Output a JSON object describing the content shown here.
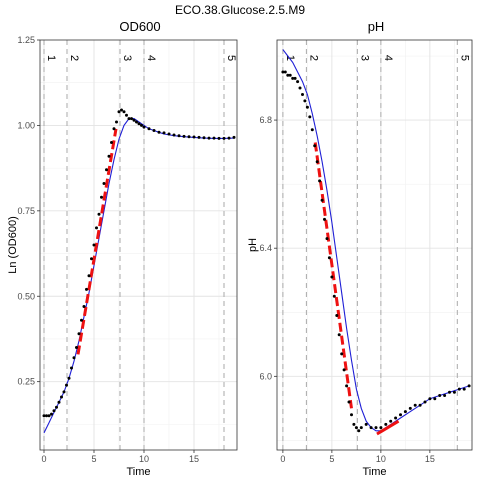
{
  "figure": {
    "title": "ECO.38.Glucose.2.5.M9"
  },
  "colors": {
    "points": "#000000",
    "fit": "#1f1fd6",
    "segment": "#ee1111",
    "phase_lines": "#aaaaaa",
    "grid_major": "#e3e3e3",
    "grid_minor": "#f1f1f1",
    "border": "#333333"
  },
  "chart_data": [
    {
      "type": "scatter",
      "title": "OD600",
      "xlabel": "Time",
      "ylabel": "Ln (OD600)",
      "xlim": [
        -0.4,
        19.3
      ],
      "ylim": [
        0.05,
        1.25
      ],
      "xticks": [
        0,
        5,
        10,
        15
      ],
      "yticks": [
        0.25,
        0.5,
        0.75,
        1.0
      ],
      "ytick_labels": [
        "0.25",
        "0.50",
        "0.75",
        "1.00"
      ],
      "grid": true,
      "phase_lines": [
        {
          "label": "1",
          "x": 0
        },
        {
          "label": "2",
          "x": 2.3
        },
        {
          "label": "3",
          "x": 7.6
        },
        {
          "label": "4",
          "x": 10.0
        },
        {
          "label": "5",
          "x": 18.0
        }
      ],
      "points": {
        "x": [
          0.0,
          0.25,
          0.5,
          0.75,
          1.0,
          1.25,
          1.5,
          1.75,
          2.0,
          2.25,
          2.5,
          2.75,
          3.0,
          3.25,
          3.5,
          3.75,
          4.0,
          4.25,
          4.5,
          4.75,
          5.0,
          5.25,
          5.5,
          5.75,
          6.0,
          6.25,
          6.5,
          6.75,
          7.0,
          7.25,
          7.5,
          7.75,
          8.0,
          8.25,
          8.5,
          8.75,
          9.0,
          9.25,
          9.5,
          9.75,
          10.0,
          10.5,
          11.0,
          11.5,
          12.0,
          12.5,
          13.0,
          13.5,
          14.0,
          14.5,
          15.0,
          15.5,
          16.0,
          16.5,
          17.0,
          17.5,
          18.0,
          18.5,
          19.0
        ],
        "y": [
          0.15,
          0.15,
          0.15,
          0.155,
          0.165,
          0.175,
          0.19,
          0.205,
          0.22,
          0.24,
          0.26,
          0.29,
          0.32,
          0.35,
          0.39,
          0.43,
          0.47,
          0.52,
          0.56,
          0.61,
          0.65,
          0.7,
          0.74,
          0.79,
          0.83,
          0.87,
          0.91,
          0.95,
          0.99,
          1.01,
          1.04,
          1.045,
          1.04,
          1.03,
          1.02,
          1.02,
          1.015,
          1.01,
          1.005,
          1.0,
          0.995,
          0.99,
          0.985,
          0.98,
          0.978,
          0.975,
          0.972,
          0.97,
          0.968,
          0.967,
          0.966,
          0.965,
          0.964,
          0.963,
          0.963,
          0.962,
          0.962,
          0.963,
          0.965
        ]
      },
      "fit": {
        "x": [
          0,
          0.5,
          1,
          1.5,
          2,
          2.5,
          3,
          3.5,
          4,
          4.5,
          5,
          5.5,
          6,
          6.5,
          7,
          7.5,
          8,
          8.5,
          9,
          9.5,
          10,
          10.5,
          11,
          11.5,
          12,
          13,
          14,
          15,
          16,
          17,
          18,
          19
        ],
        "y": [
          0.1,
          0.13,
          0.16,
          0.19,
          0.22,
          0.26,
          0.31,
          0.37,
          0.44,
          0.51,
          0.59,
          0.67,
          0.75,
          0.83,
          0.9,
          0.96,
          1.0,
          1.02,
          1.02,
          1.01,
          1.0,
          0.99,
          0.985,
          0.98,
          0.975,
          0.97,
          0.967,
          0.965,
          0.963,
          0.962,
          0.962,
          0.963
        ]
      },
      "segment": {
        "x": [
          3.4,
          7.2
        ],
        "y": [
          0.33,
          0.99
        ]
      }
    },
    {
      "type": "scatter",
      "title": "pH",
      "xlabel": "Time",
      "ylabel": "pH",
      "xlim": [
        -0.6,
        19.3
      ],
      "ylim": [
        5.77,
        7.05
      ],
      "xticks": [
        0,
        5,
        10,
        15
      ],
      "yticks": [
        6.0,
        6.4,
        6.8
      ],
      "ytick_labels": [
        "6.0",
        "6.4",
        "6.8"
      ],
      "grid": true,
      "phase_lines": [
        {
          "label": "1",
          "x": 0
        },
        {
          "label": "2",
          "x": 2.4
        },
        {
          "label": "3",
          "x": 7.6
        },
        {
          "label": "4",
          "x": 10.0
        },
        {
          "label": "5",
          "x": 17.8
        }
      ],
      "points": {
        "x": [
          0.0,
          0.25,
          0.5,
          0.75,
          1.0,
          1.25,
          1.5,
          1.75,
          2.0,
          2.25,
          2.5,
          2.75,
          3.0,
          3.25,
          3.5,
          3.75,
          4.0,
          4.25,
          4.5,
          4.75,
          5.0,
          5.25,
          5.5,
          5.75,
          6.0,
          6.25,
          6.5,
          6.75,
          7.0,
          7.25,
          7.5,
          7.75,
          8.0,
          8.5,
          9.0,
          9.5,
          10.0,
          10.5,
          11.0,
          11.5,
          12.0,
          12.5,
          13.0,
          13.5,
          14.0,
          14.5,
          15.0,
          15.5,
          16.0,
          16.5,
          17.0,
          17.5,
          18.0,
          18.5,
          19.0
        ],
        "y": [
          6.95,
          6.95,
          6.94,
          6.94,
          6.93,
          6.93,
          6.92,
          6.9,
          6.88,
          6.86,
          6.84,
          6.81,
          6.77,
          6.72,
          6.67,
          6.61,
          6.55,
          6.49,
          6.43,
          6.37,
          6.31,
          6.25,
          6.19,
          6.13,
          6.07,
          6.02,
          5.97,
          5.92,
          5.88,
          5.85,
          5.84,
          5.83,
          5.84,
          5.85,
          5.84,
          5.84,
          5.84,
          5.85,
          5.86,
          5.87,
          5.88,
          5.89,
          5.9,
          5.91,
          5.91,
          5.92,
          5.93,
          5.93,
          5.94,
          5.94,
          5.95,
          5.95,
          5.96,
          5.96,
          5.97
        ]
      },
      "fit": {
        "x": [
          0,
          0.5,
          1,
          1.5,
          2,
          2.5,
          3,
          3.5,
          4,
          4.5,
          5,
          5.5,
          6,
          6.5,
          7,
          7.5,
          8,
          8.5,
          9,
          9.5,
          10,
          10.5,
          11,
          12,
          13,
          14,
          15,
          16,
          17,
          18,
          19
        ],
        "y": [
          7.02,
          7.0,
          6.98,
          6.95,
          6.92,
          6.88,
          6.82,
          6.75,
          6.67,
          6.58,
          6.48,
          6.37,
          6.26,
          6.15,
          6.05,
          5.96,
          5.9,
          5.86,
          5.84,
          5.83,
          5.83,
          5.84,
          5.85,
          5.87,
          5.89,
          5.91,
          5.93,
          5.94,
          5.95,
          5.96,
          5.97
        ]
      },
      "segment": {
        "x": [
          3.3,
          7.0
        ],
        "y": [
          6.73,
          5.9
        ]
      },
      "segment2": {
        "x": [
          9.6,
          11.8
        ],
        "y": [
          5.82,
          5.86
        ]
      }
    }
  ]
}
